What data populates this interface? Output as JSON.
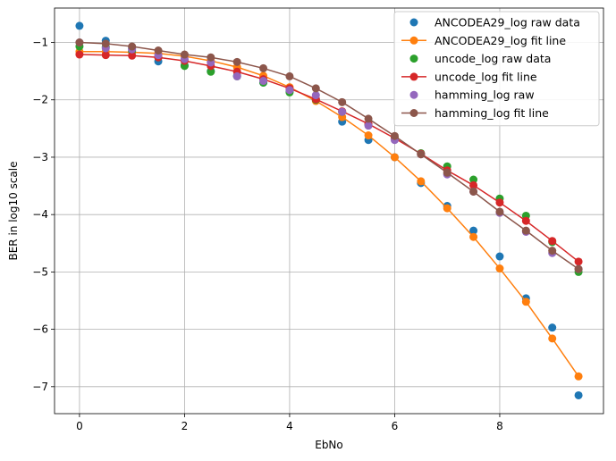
{
  "chart_data": {
    "type": "line",
    "title": "",
    "xlabel": "EbNo",
    "ylabel": "BER in log10 scale",
    "xlim": [
      -0.475,
      9.975
    ],
    "ylim": [
      -7.47,
      -0.4
    ],
    "xticks": [
      0,
      2,
      4,
      6,
      8
    ],
    "xtick_labels": [
      "0",
      "2",
      "4",
      "6",
      "8"
    ],
    "yticks": [
      -7,
      -6,
      -5,
      -4,
      -3,
      -2,
      -1
    ],
    "ytick_labels": [
      "−7",
      "−6",
      "−5",
      "−4",
      "−3",
      "−2",
      "−1"
    ],
    "grid": true,
    "legend_position": "top-right",
    "x": [
      0,
      0.5,
      1,
      1.5,
      2,
      2.5,
      3,
      3.5,
      4,
      4.5,
      5,
      5.5,
      6,
      6.5,
      7,
      7.5,
      8,
      8.5,
      9,
      9.5
    ],
    "series": [
      {
        "name": "ANCODEA29_log raw data",
        "style": "points",
        "color": "#1f77b4",
        "values": [
          -0.71,
          -0.97,
          -1.1,
          -1.33,
          -1.4,
          -1.5,
          -1.58,
          -1.7,
          -1.85,
          -2.0,
          -2.38,
          -2.7,
          -3.0,
          -3.45,
          -3.85,
          -4.28,
          -4.73,
          -5.46,
          -5.97,
          -7.15
        ]
      },
      {
        "name": "ANCODEA29_log fit line",
        "style": "line-markers",
        "color": "#ff7f0e",
        "values": [
          -1.16,
          -1.16,
          -1.17,
          -1.19,
          -1.24,
          -1.32,
          -1.43,
          -1.58,
          -1.78,
          -2.02,
          -2.3,
          -2.62,
          -3.0,
          -3.42,
          -3.89,
          -4.39,
          -4.94,
          -5.52,
          -6.16,
          -6.82
        ]
      },
      {
        "name": "uncode_log raw data",
        "style": "points",
        "color": "#2ca02c",
        "values": [
          -1.07,
          -1.08,
          -1.15,
          -1.26,
          -1.41,
          -1.51,
          -1.59,
          -1.7,
          -1.87,
          -2.0,
          -2.21,
          -2.43,
          -2.65,
          -2.93,
          -3.16,
          -3.39,
          -3.72,
          -4.02,
          -4.48,
          -5.0
        ]
      },
      {
        "name": "uncode_log fit line",
        "style": "line-markers",
        "color": "#d62728",
        "values": [
          -1.21,
          -1.22,
          -1.23,
          -1.26,
          -1.32,
          -1.41,
          -1.51,
          -1.64,
          -1.8,
          -1.99,
          -2.2,
          -2.42,
          -2.67,
          -2.94,
          -3.23,
          -3.49,
          -3.79,
          -4.11,
          -4.46,
          -4.82
        ]
      },
      {
        "name": "hamming_log raw",
        "style": "points",
        "color": "#9467bd",
        "values": [
          -1.0,
          -1.1,
          -1.12,
          -1.22,
          -1.29,
          -1.35,
          -1.59,
          -1.67,
          -1.83,
          -1.92,
          -2.21,
          -2.45,
          -2.7,
          -2.95,
          -3.3,
          -3.6,
          -3.97,
          -4.3,
          -4.67,
          -4.95
        ]
      },
      {
        "name": "hamming_log fit line",
        "style": "line-markers",
        "color": "#8c564b",
        "values": [
          -1.0,
          -1.02,
          -1.07,
          -1.14,
          -1.21,
          -1.26,
          -1.34,
          -1.45,
          -1.59,
          -1.8,
          -2.04,
          -2.33,
          -2.63,
          -2.95,
          -3.27,
          -3.6,
          -3.95,
          -4.28,
          -4.63,
          -4.95
        ]
      }
    ]
  }
}
